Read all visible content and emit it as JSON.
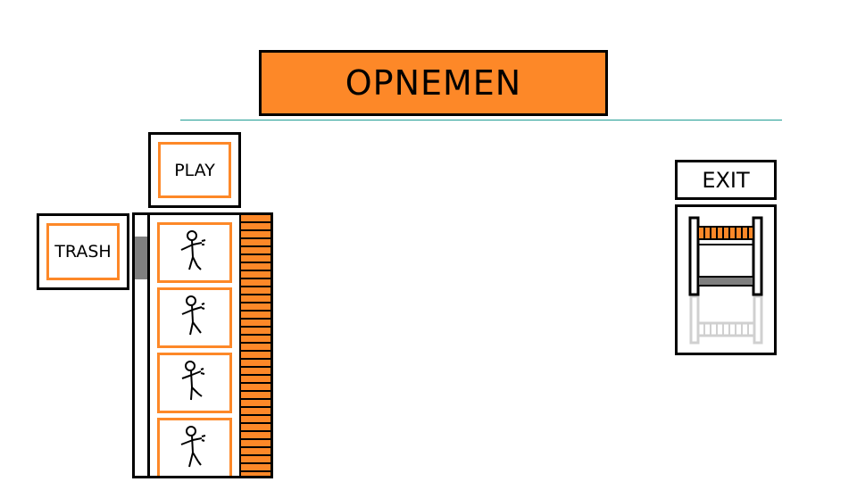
{
  "header": {
    "title": "OPNEMEN"
  },
  "controls": {
    "play_label": "PLAY",
    "trash_label": "TRASH",
    "exit_label": "EXIT"
  },
  "frames": {
    "count": 4
  },
  "colors": {
    "accent": "#fd8828",
    "border": "#000000",
    "divider": "#1f9c94",
    "scroll_thumb": "#7f7f7f",
    "ghost": "#d0d0d0"
  }
}
